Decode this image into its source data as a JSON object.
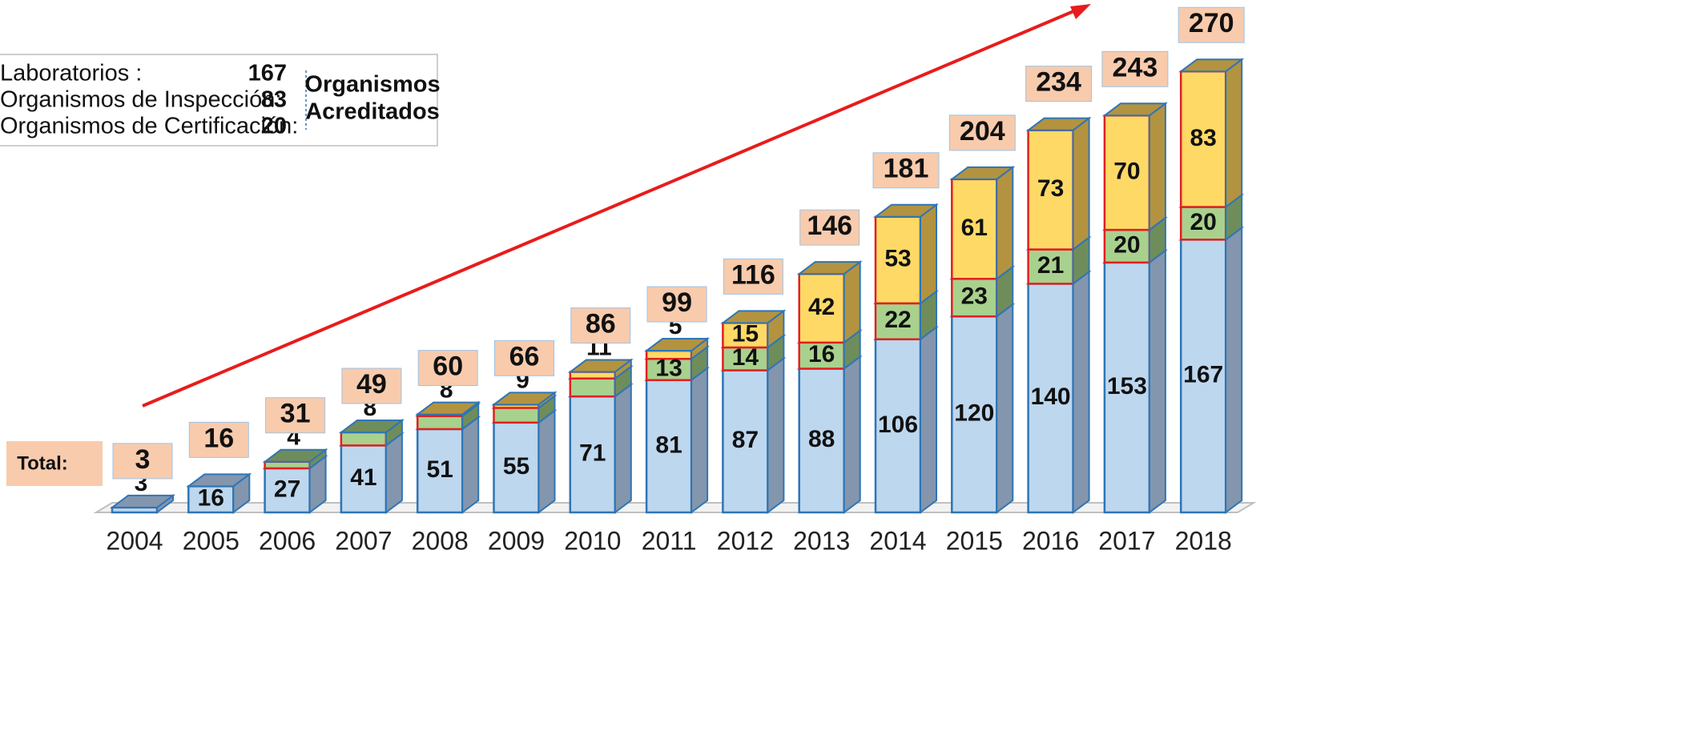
{
  "chart_data": {
    "type": "bar3d_stacked",
    "categories": [
      "2004",
      "2005",
      "2006",
      "2007",
      "2008",
      "2009",
      "2010",
      "2011",
      "2012",
      "2013",
      "2014",
      "2015",
      "2016",
      "2017",
      "2018"
    ],
    "series": [
      {
        "name": "Laboratorios :",
        "color": "#bdd7ee",
        "side": "#8396ad",
        "values": [
          3,
          16,
          27,
          41,
          51,
          55,
          71,
          81,
          87,
          88,
          106,
          120,
          140,
          153,
          167
        ]
      },
      {
        "name": "Organismos de Inspección:",
        "color": "#a9d18e",
        "side": "#6f8d5b",
        "values": [
          null,
          null,
          4,
          8,
          8,
          9,
          11,
          13,
          14,
          16,
          22,
          23,
          21,
          20,
          20
        ]
      },
      {
        "name": "Organismos de Certificación:",
        "color": "#ffd966",
        "side": "#b3933f",
        "values": [
          null,
          null,
          null,
          null,
          1,
          2,
          4,
          5,
          15,
          42,
          53,
          61,
          73,
          70,
          83
        ]
      }
    ],
    "legend_values": [
      167,
      83,
      20
    ],
    "legend_title": [
      "Organismos",
      "Acreditados"
    ],
    "total_label": "Total:",
    "totals": [
      3,
      16,
      31,
      49,
      60,
      66,
      86,
      99,
      116,
      146,
      181,
      204,
      234,
      243,
      270
    ],
    "ylim": [
      0,
      300
    ]
  }
}
